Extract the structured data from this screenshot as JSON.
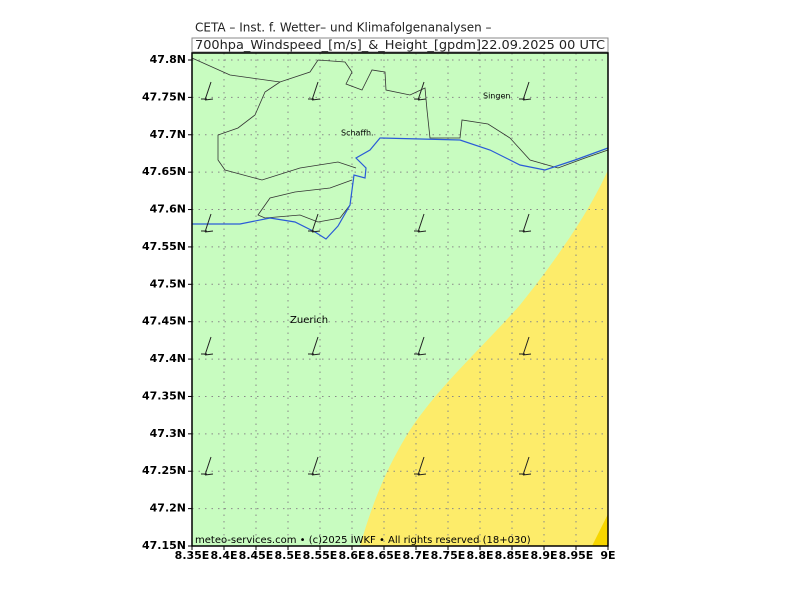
{
  "header": {
    "line1": "CETA – Inst. f. Wetter– und Klimafolgenanalysen –",
    "line2": "700hpa_Windspeed_[m/s]_&_Height_[gpdm]22.09.2025 00 UTC"
  },
  "axes": {
    "x_labels": [
      "8.35E",
      "8.4E",
      "8.45E",
      "8.5E",
      "8.55E",
      "8.6E",
      "8.65E",
      "8.7E",
      "8.75E",
      "8.8E",
      "8.85E",
      "8.9E",
      "8.95E",
      "9E"
    ],
    "y_labels": [
      "47.15N",
      "47.2N",
      "47.25N",
      "47.3N",
      "47.35N",
      "47.4N",
      "47.45N",
      "47.5N",
      "47.55N",
      "47.6N",
      "47.65N",
      "47.7N",
      "47.75N",
      "47.8N"
    ]
  },
  "places": [
    "Singen",
    "Schaffh.",
    "Zuerich"
  ],
  "footer": "meteo-services.com • (c)2025 IWKF • All rights reserved (18+030)"
}
